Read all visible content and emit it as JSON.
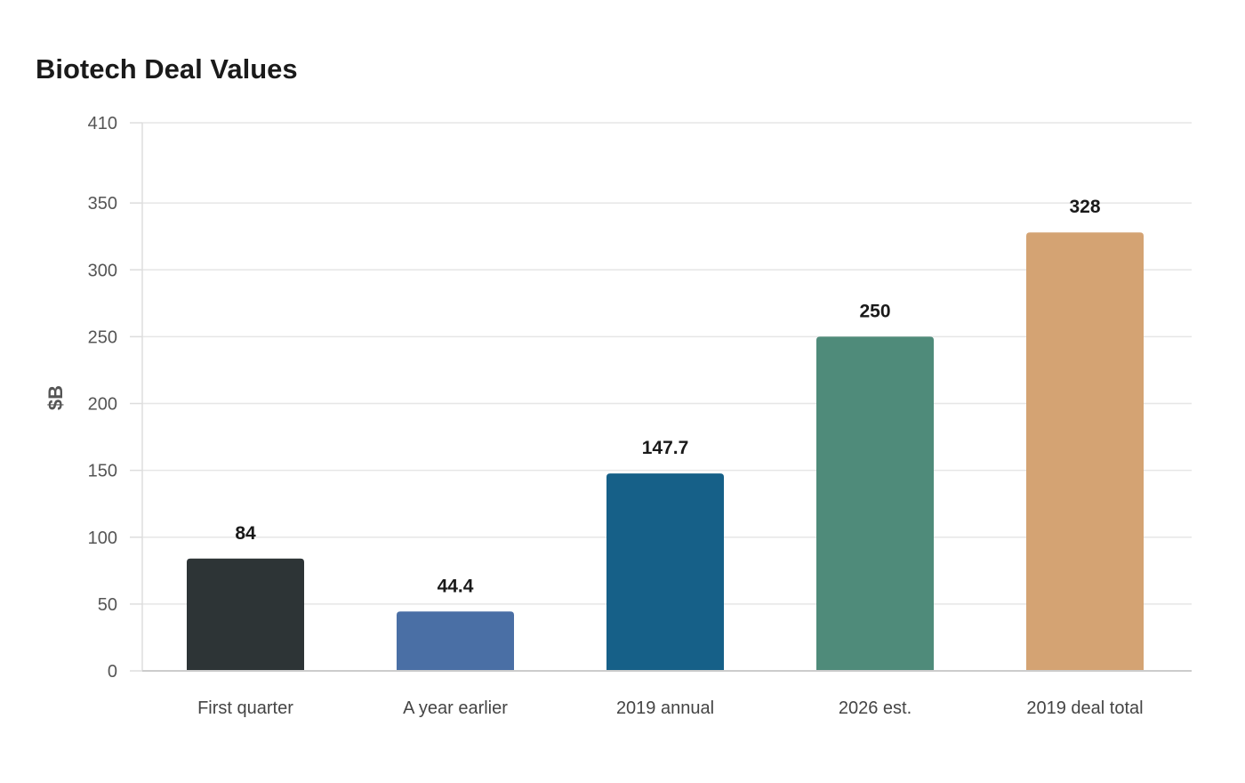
{
  "chart_data": {
    "type": "bar",
    "title": "Biotech Deal Values",
    "xlabel": "",
    "ylabel": "$B",
    "categories": [
      "First quarter",
      "A year earlier",
      "2019 annual",
      "2026 est.",
      "2019 deal total"
    ],
    "values": [
      84,
      44.4,
      147.7,
      250,
      328
    ],
    "value_labels": [
      "84",
      "44.4",
      "147.7",
      "250",
      "328"
    ],
    "colors": [
      "#2d3436",
      "#4a6fa5",
      "#166088",
      "#4f8b7a",
      "#d4a373"
    ],
    "ylim": [
      0,
      410
    ],
    "yticks": [
      0,
      50,
      100,
      150,
      200,
      250,
      300,
      350,
      410
    ],
    "grid": true,
    "legend": "none"
  }
}
